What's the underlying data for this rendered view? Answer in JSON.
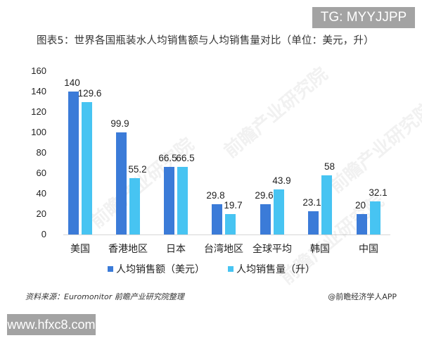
{
  "badge_top": "TG: MYYJJPP",
  "badge_bottom": "www.hfxc8.com",
  "source_note": "资料来源：Euromonitor 前瞻产业研究院整理",
  "credit": "@前瞻经济学人APP",
  "watermark": "前瞻产业研究院",
  "colors": {
    "series0": "#3b7bd8",
    "series1": "#47c4f2"
  },
  "chart_data": {
    "type": "bar",
    "title": "图表5：世界各国瓶装水人均销售额与人均销售量对比（单位：美元，升）",
    "xlabel": "",
    "ylabel": "",
    "ylim": [
      0,
      160
    ],
    "yticks": [
      0,
      20,
      40,
      60,
      80,
      100,
      120,
      140,
      160
    ],
    "grid": false,
    "legend_position": "bottom",
    "categories": [
      "美国",
      "香港地区",
      "日本",
      "台湾地区",
      "全球平均",
      "韩国",
      "中国"
    ],
    "series": [
      {
        "name": "人均销售额（美元）",
        "values": [
          140,
          99.9,
          66.5,
          29.8,
          29.6,
          23.1,
          20
        ]
      },
      {
        "name": "人均销售量（升）",
        "values": [
          129.6,
          55.2,
          66.5,
          19.7,
          43.9,
          58,
          32.1
        ]
      }
    ]
  }
}
